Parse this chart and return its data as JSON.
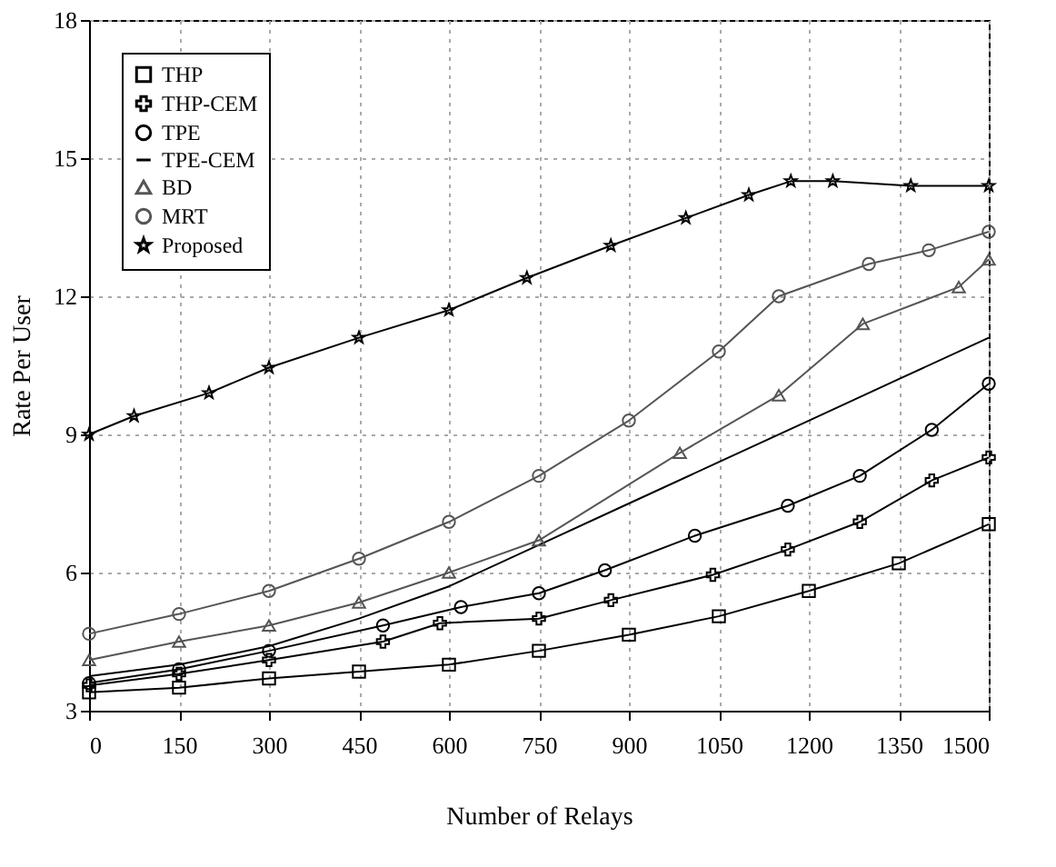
{
  "chart_data": {
    "type": "line",
    "xlabel": "Number of Relays",
    "ylabel": "Rate Per User",
    "xlim": [
      0,
      1500
    ],
    "xticks": [
      0,
      150,
      300,
      450,
      600,
      750,
      900,
      1050,
      1200,
      1350,
      1500
    ],
    "ylim": [
      3,
      18
    ],
    "yticks": [
      3,
      6,
      9,
      12,
      15,
      18
    ],
    "grid": true,
    "legend": "top left",
    "line_style": "solid",
    "series": [
      {
        "name": "THP",
        "color": "#000000",
        "marker": "square",
        "x": [
          0,
          150,
          300,
          450,
          600,
          750,
          900,
          1050,
          1200,
          1350,
          1500
        ],
        "values": [
          3.4,
          3.5,
          3.7,
          3.85,
          4.0,
          4.3,
          4.65,
          5.05,
          5.6,
          6.2,
          7.05
        ]
      },
      {
        "name": "THP-CEM",
        "color": "#000000",
        "marker": "cross",
        "x": [
          0,
          150,
          300,
          490,
          585,
          750,
          870,
          1040,
          1165,
          1285,
          1405,
          1500
        ],
        "values": [
          3.55,
          3.8,
          4.1,
          4.5,
          4.9,
          5.0,
          5.4,
          5.95,
          6.5,
          7.1,
          8.0,
          8.5
        ]
      },
      {
        "name": "TPE",
        "color": "#000000",
        "marker": "circle",
        "x": [
          0,
          150,
          300,
          490,
          620,
          750,
          860,
          1010,
          1165,
          1285,
          1405,
          1500
        ],
        "values": [
          3.6,
          3.9,
          4.3,
          4.85,
          5.25,
          5.55,
          6.05,
          6.8,
          7.45,
          8.1,
          9.1,
          10.1
        ]
      },
      {
        "name": "TPE-CEM",
        "color": "#000000",
        "marker": "none",
        "x": [
          0,
          150,
          300,
          450,
          600,
          750,
          900,
          1050,
          1200,
          1350,
          1500
        ],
        "values": [
          3.75,
          4.0,
          4.4,
          5.0,
          5.7,
          6.6,
          7.5,
          8.4,
          9.3,
          10.2,
          11.1
        ]
      },
      {
        "name": "BD",
        "color": "#555555",
        "marker": "triangle",
        "x": [
          0,
          150,
          300,
          450,
          600,
          750,
          985,
          1150,
          1290,
          1450,
          1500
        ],
        "values": [
          4.1,
          4.5,
          4.85,
          5.35,
          6.0,
          6.7,
          8.6,
          9.85,
          11.4,
          12.2,
          12.8
        ]
      },
      {
        "name": "MRT",
        "color": "#555555",
        "marker": "circle",
        "x": [
          0,
          150,
          300,
          450,
          600,
          750,
          900,
          1050,
          1150,
          1300,
          1400,
          1500
        ],
        "values": [
          4.67,
          5.1,
          5.6,
          6.3,
          7.1,
          8.1,
          9.3,
          10.8,
          12.0,
          12.7,
          13.0,
          13.4
        ]
      },
      {
        "name": "Proposed",
        "color": "#000000",
        "marker": "star",
        "x": [
          0,
          75,
          200,
          300,
          450,
          600,
          730,
          870,
          995,
          1100,
          1170,
          1240,
          1370,
          1500
        ],
        "values": [
          9.0,
          9.4,
          9.9,
          10.45,
          11.1,
          11.7,
          12.4,
          13.1,
          13.7,
          14.2,
          14.5,
          14.5,
          14.4,
          14.4
        ]
      }
    ]
  }
}
